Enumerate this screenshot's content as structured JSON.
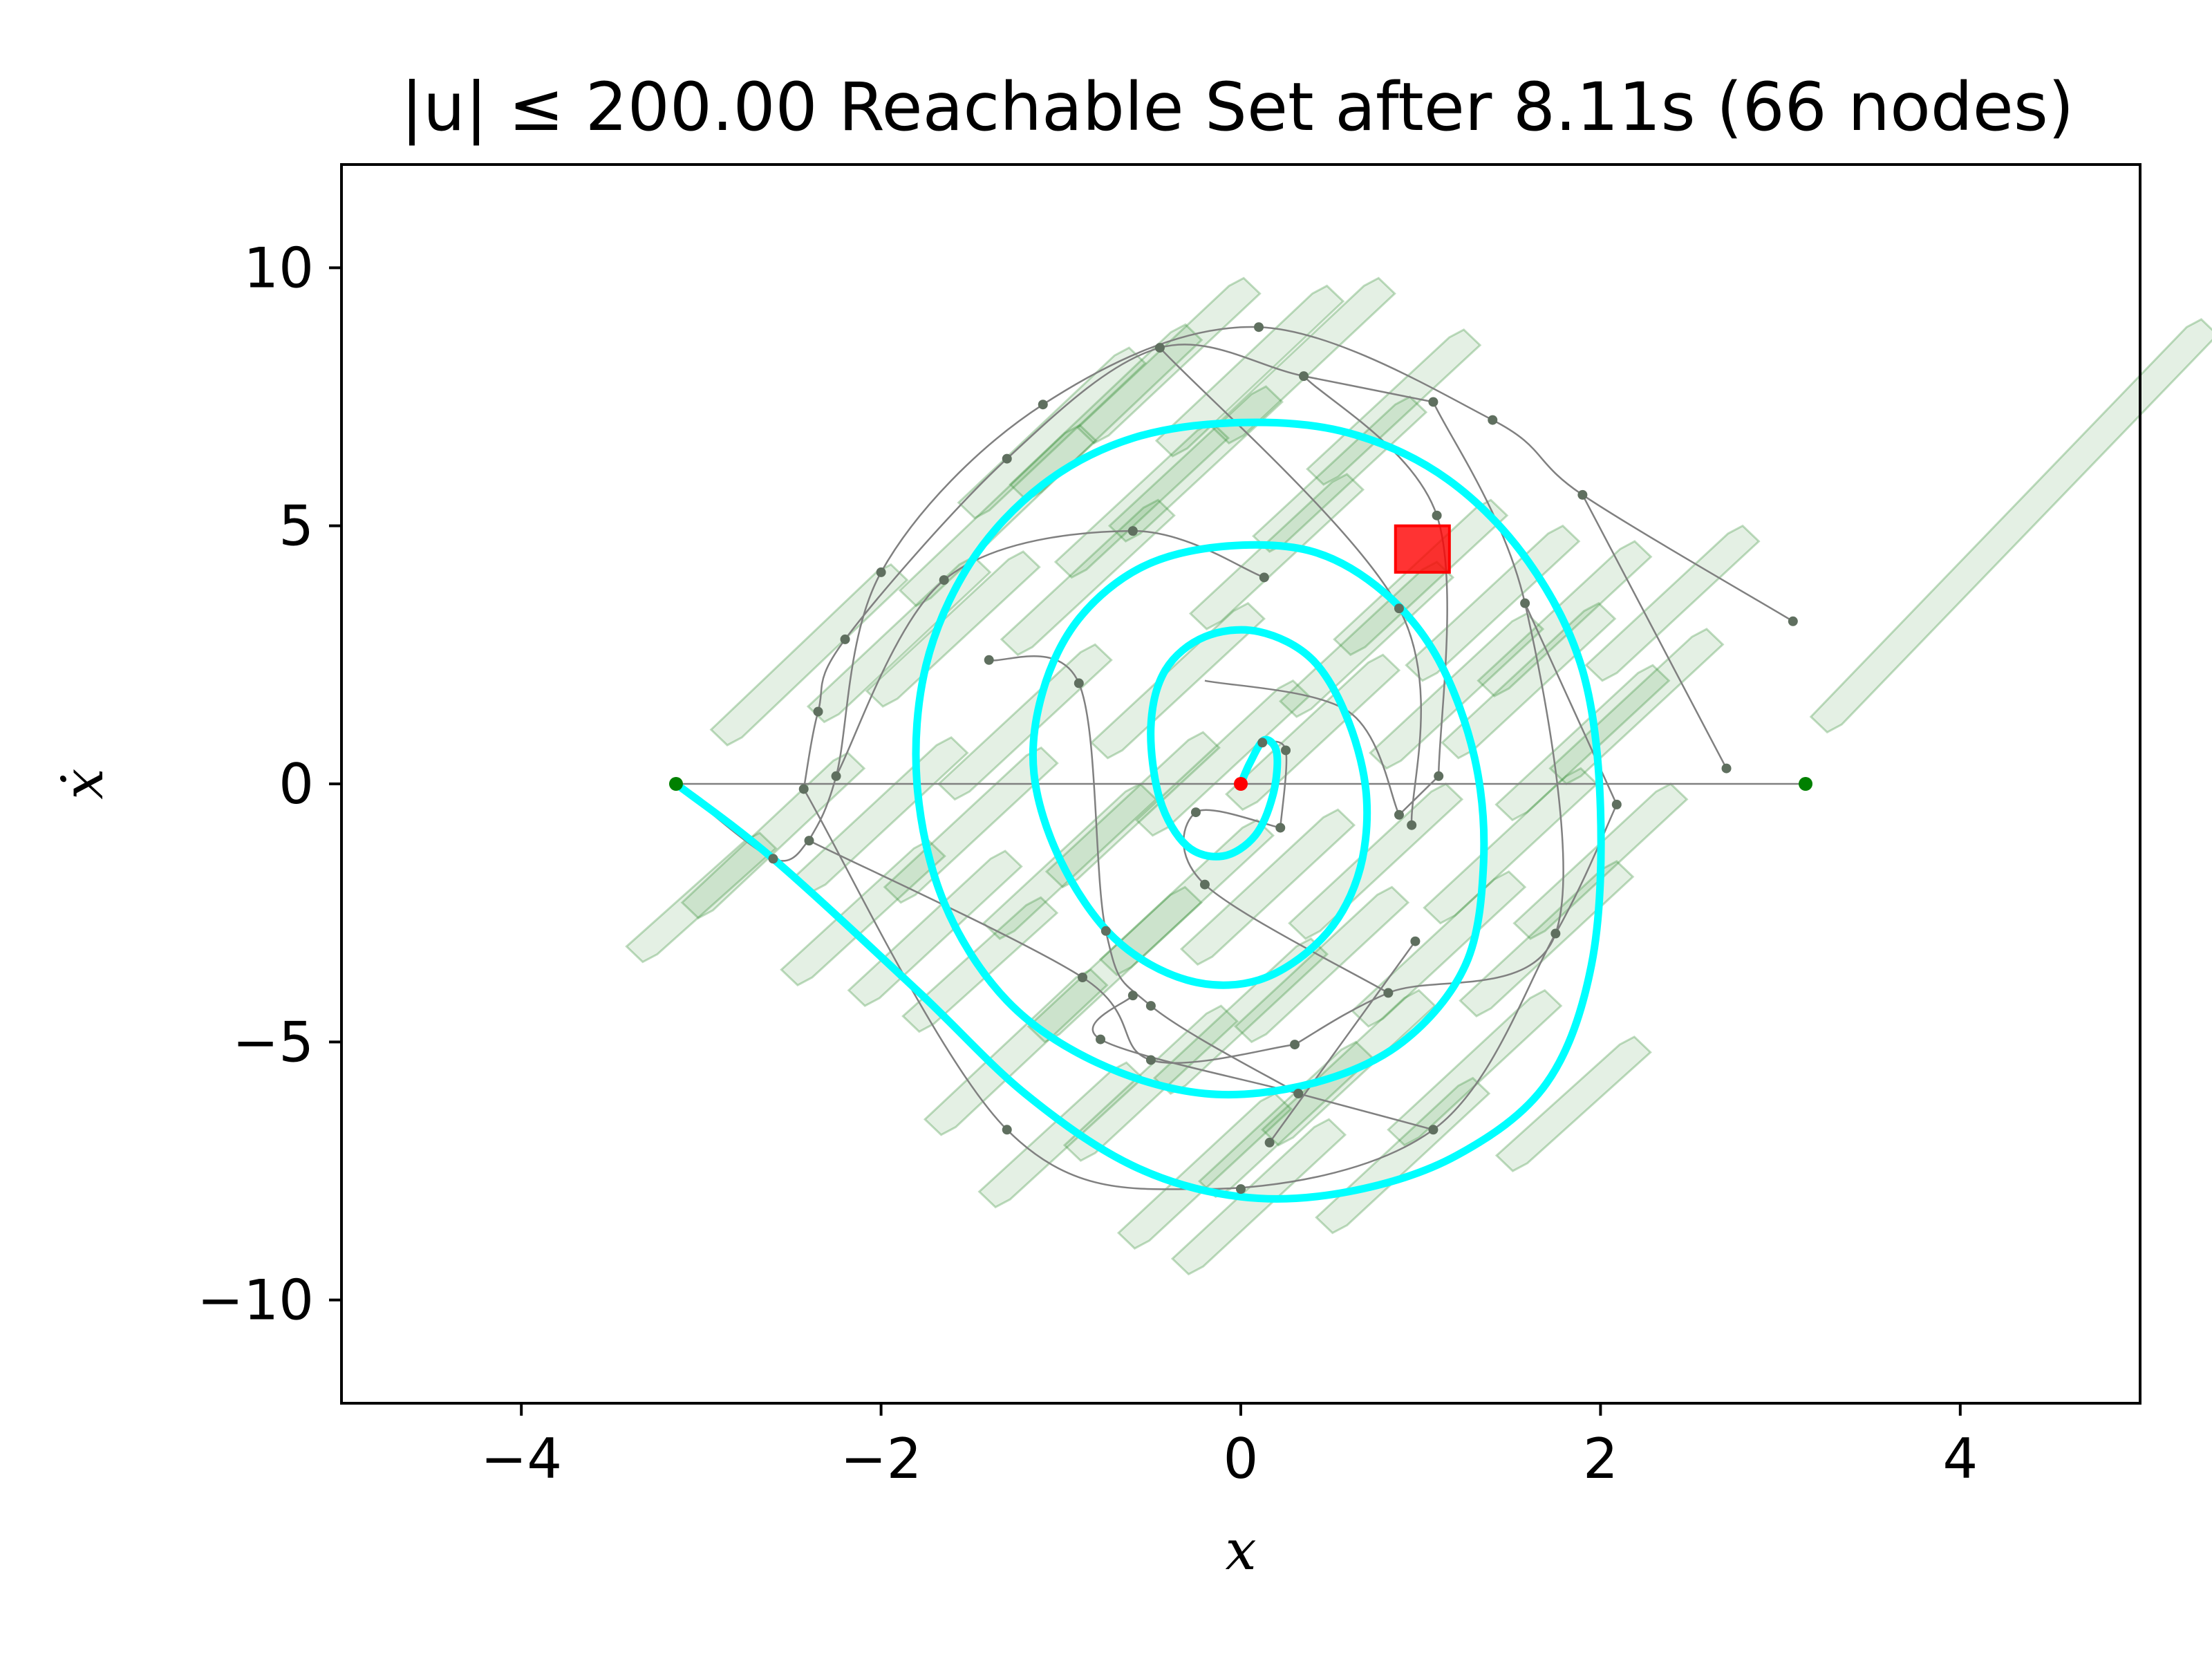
{
  "chart_data": {
    "type": "scatter",
    "title": "|u| ≤ 200.00 Reachable Set after 8.11s (66 nodes)",
    "xlabel": "x",
    "ylabel": "ẋ",
    "xlim": [
      -5,
      5
    ],
    "ylim": [
      -12,
      12
    ],
    "xticks": [
      -4,
      -2,
      0,
      2,
      4
    ],
    "yticks": [
      -10,
      -5,
      0,
      5,
      10
    ],
    "xtick_labels": [
      "−4",
      "−2",
      "0",
      "2",
      "4"
    ],
    "ytick_labels": [
      "−10",
      "−5",
      "0",
      "5",
      "10"
    ],
    "grid": false,
    "colors": {
      "reachable_region": "#2e8b2e",
      "tree_edge": "#808080",
      "tree_node": "#5f6f5f",
      "solution_path": "#00ffff",
      "goal_marker": "#ff0000",
      "start_marker": "#ff0000",
      "boundary_marker": "#008000"
    },
    "start": [
      0,
      0
    ],
    "boundary_points": [
      [
        -3.14,
        0
      ],
      [
        3.14,
        0
      ]
    ],
    "goal_region": {
      "x": [
        0.86,
        1.16
      ],
      "y": [
        4.1,
        5.0
      ]
    },
    "reachable_regions": [
      [
        -3.0,
        -2.2,
        2.5
      ],
      [
        -2.6,
        -1.0,
        3.2
      ],
      [
        -2.4,
        2.5,
        3.5
      ],
      [
        -2.1,
        -2.5,
        2.8
      ],
      [
        -2.0,
        -0.6,
        3.0
      ],
      [
        -1.9,
        2.8,
        3.2
      ],
      [
        -1.7,
        -2.8,
        3.0
      ],
      [
        -1.6,
        3.0,
        3.0
      ],
      [
        -1.5,
        -0.8,
        3.0
      ],
      [
        -1.45,
        -3.5,
        2.6
      ],
      [
        -1.35,
        5.2,
        3.5
      ],
      [
        -1.25,
        -5.2,
        3.2
      ],
      [
        -1.2,
        1.2,
        3.0
      ],
      [
        -1.05,
        6.8,
        3.3
      ],
      [
        -1.0,
        -6.8,
        2.8
      ],
      [
        -0.95,
        -1.5,
        3.0
      ],
      [
        -0.85,
        4.0,
        3.0
      ],
      [
        -0.75,
        7.2,
        3.4
      ],
      [
        -0.7,
        -3.5,
        3.0
      ],
      [
        -0.6,
        -0.5,
        3.0
      ],
      [
        -0.55,
        5.5,
        3.0
      ],
      [
        -0.5,
        -5.8,
        3.0
      ],
      [
        -0.4,
        8.2,
        3.2
      ],
      [
        -0.35,
        2.0,
        3.0
      ],
      [
        -0.3,
        -2.2,
        3.0
      ],
      [
        -0.25,
        6.2,
        3.0
      ],
      [
        -0.2,
        -7.5,
        3.0
      ],
      [
        -0.1,
        0.5,
        3.0
      ],
      [
        0.0,
        -4.5,
        3.0
      ],
      [
        0.05,
        8.0,
        3.3
      ],
      [
        0.1,
        -8.0,
        3.0
      ],
      [
        0.15,
        -2.0,
        3.0
      ],
      [
        0.2,
        4.5,
        3.0
      ],
      [
        0.25,
        -6.5,
        3.0
      ],
      [
        0.35,
        8.2,
        3.2
      ],
      [
        0.4,
        1.0,
        3.0
      ],
      [
        0.45,
        -3.5,
        3.0
      ],
      [
        0.55,
        6.0,
        3.0
      ],
      [
        0.6,
        -5.5,
        3.0
      ],
      [
        0.7,
        2.8,
        3.0
      ],
      [
        0.75,
        -1.5,
        3.0
      ],
      [
        0.85,
        7.3,
        3.0
      ],
      [
        0.9,
        -7.2,
        3.0
      ],
      [
        1.0,
        4.0,
        3.0
      ],
      [
        1.1,
        -3.2,
        3.0
      ],
      [
        1.2,
        1.8,
        3.0
      ],
      [
        1.3,
        -5.5,
        3.0
      ],
      [
        1.4,
        3.5,
        3.0
      ],
      [
        1.5,
        -1.2,
        3.0
      ],
      [
        1.6,
        2.0,
        3.0
      ],
      [
        1.7,
        -3.0,
        3.0
      ],
      [
        1.8,
        3.2,
        3.0
      ],
      [
        1.9,
        0.8,
        3.0
      ],
      [
        2.0,
        -1.5,
        3.0
      ],
      [
        2.2,
        1.5,
        3.0
      ],
      [
        2.4,
        3.5,
        3.0
      ],
      [
        1.85,
        -6.2,
        2.6
      ],
      [
        4.3,
        5.0,
        8.0
      ]
    ],
    "tree_nodes": [
      [
        0.1,
        8.85
      ],
      [
        -0.45,
        8.45
      ],
      [
        0.35,
        7.9
      ],
      [
        1.07,
        7.4
      ],
      [
        1.4,
        7.05
      ],
      [
        -1.1,
        7.35
      ],
      [
        -1.3,
        6.3
      ],
      [
        -0.6,
        4.9
      ],
      [
        0.13,
        4.0
      ],
      [
        1.09,
        5.2
      ],
      [
        1.9,
        5.6
      ],
      [
        -2.0,
        4.1
      ],
      [
        -1.65,
        3.95
      ],
      [
        -2.2,
        2.8
      ],
      [
        -1.4,
        2.4
      ],
      [
        -2.35,
        1.4
      ],
      [
        -0.9,
        1.95
      ],
      [
        -2.25,
        0.15
      ],
      [
        -2.43,
        -0.1
      ],
      [
        -2.4,
        -1.1
      ],
      [
        0.88,
        3.4
      ],
      [
        1.58,
        3.5
      ],
      [
        3.07,
        3.15
      ],
      [
        2.7,
        0.3
      ],
      [
        1.1,
        0.15
      ],
      [
        2.09,
        -0.4
      ],
      [
        0.25,
        0.65
      ],
      [
        0.88,
        -0.6
      ],
      [
        0.95,
        -0.8
      ],
      [
        0.22,
        -0.85
      ],
      [
        -0.25,
        -0.55
      ],
      [
        -0.2,
        -1.95
      ],
      [
        -0.75,
        -2.85
      ],
      [
        -0.88,
        -3.75
      ],
      [
        -0.6,
        -4.1
      ],
      [
        -0.5,
        -4.3
      ],
      [
        -0.78,
        -4.95
      ],
      [
        -0.5,
        -5.35
      ],
      [
        0.3,
        -5.05
      ],
      [
        0.82,
        -4.05
      ],
      [
        0.97,
        -3.05
      ],
      [
        1.75,
        -2.9
      ],
      [
        0.32,
        -6.0
      ],
      [
        0.16,
        -6.95
      ],
      [
        1.07,
        -6.7
      ],
      [
        -1.3,
        -6.7
      ],
      [
        0.0,
        -7.85
      ],
      [
        -2.6,
        -1.45
      ],
      [
        0.12,
        0.8
      ]
    ],
    "tree_curves": [
      [
        [
          -3.14,
          0
        ],
        [
          -2.6,
          -1.45
        ],
        [
          -2.4,
          -1.1
        ]
      ],
      [
        [
          -2.43,
          -0.1
        ],
        [
          -2.35,
          1.4
        ],
        [
          -2.2,
          2.8
        ],
        [
          -1.3,
          6.3
        ],
        [
          -0.45,
          8.45
        ],
        [
          0.35,
          7.9
        ],
        [
          1.07,
          7.4
        ]
      ],
      [
        [
          -2.4,
          -1.1
        ],
        [
          -2.25,
          0.15
        ],
        [
          -2.0,
          4.1
        ],
        [
          -1.1,
          7.35
        ],
        [
          0.1,
          8.85
        ],
        [
          1.4,
          7.05
        ],
        [
          1.9,
          5.6
        ],
        [
          3.07,
          3.15
        ]
      ],
      [
        [
          -2.25,
          0.15
        ],
        [
          -1.65,
          3.95
        ],
        [
          -0.6,
          4.9
        ],
        [
          0.13,
          4.0
        ]
      ],
      [
        [
          1.07,
          7.4
        ],
        [
          1.58,
          3.5
        ],
        [
          1.75,
          -2.9
        ],
        [
          0.82,
          -4.05
        ],
        [
          0.3,
          -5.05
        ]
      ],
      [
        [
          1.9,
          5.6
        ],
        [
          2.7,
          0.3
        ]
      ],
      [
        [
          0.35,
          7.9
        ],
        [
          1.09,
          5.2
        ],
        [
          1.1,
          0.15
        ]
      ],
      [
        [
          -0.45,
          8.45
        ],
        [
          0.88,
          3.4
        ],
        [
          0.95,
          -0.8
        ]
      ],
      [
        [
          -1.4,
          2.4
        ],
        [
          -0.9,
          1.95
        ],
        [
          -0.75,
          -2.85
        ],
        [
          -0.5,
          -4.3
        ],
        [
          0.32,
          -6.0
        ]
      ],
      [
        [
          -2.43,
          -0.1
        ],
        [
          -1.3,
          -6.7
        ],
        [
          -0.2,
          -7.85
        ],
        [
          1.07,
          -6.7
        ],
        [
          1.75,
          -2.9
        ],
        [
          2.09,
          -0.4
        ]
      ],
      [
        [
          -2.4,
          -1.1
        ],
        [
          -0.88,
          -3.75
        ],
        [
          -0.5,
          -5.35
        ],
        [
          0.3,
          -5.05
        ]
      ],
      [
        [
          0.97,
          -3.05
        ],
        [
          0.16,
          -6.95
        ]
      ],
      [
        [
          0.22,
          -0.85
        ],
        [
          -0.25,
          -0.55
        ],
        [
          -0.2,
          -1.95
        ],
        [
          0.82,
          -4.05
        ]
      ],
      [
        [
          0.12,
          0.8
        ],
        [
          0.25,
          0.65
        ],
        [
          0.22,
          -0.85
        ]
      ],
      [
        [
          -0.6,
          -4.1
        ],
        [
          -0.78,
          -4.95
        ],
        [
          0.32,
          -6.0
        ],
        [
          1.07,
          -6.7
        ]
      ],
      [
        [
          1.1,
          0.15
        ],
        [
          0.88,
          -0.6
        ]
      ],
      [
        [
          -0.2,
          2.0
        ],
        [
          0.6,
          1.4
        ],
        [
          0.88,
          -0.6
        ]
      ],
      [
        [
          1.58,
          3.5
        ],
        [
          2.09,
          -0.4
        ]
      ]
    ],
    "solution_path": [
      [
        -3.14,
        0.0
      ],
      [
        -2.6,
        -1.45
      ],
      [
        -1.8,
        -4.0
      ],
      [
        -1.2,
        -6.0
      ],
      [
        -0.6,
        -7.4
      ],
      [
        0.0,
        -8.0
      ],
      [
        0.6,
        -7.9
      ],
      [
        1.2,
        -7.2
      ],
      [
        1.7,
        -5.8
      ],
      [
        1.95,
        -3.5
      ],
      [
        2.0,
        -0.5
      ],
      [
        1.9,
        2.2
      ],
      [
        1.6,
        4.3
      ],
      [
        1.15,
        5.9
      ],
      [
        0.6,
        6.8
      ],
      [
        0.0,
        7.0
      ],
      [
        -0.6,
        6.7
      ],
      [
        -1.1,
        5.8
      ],
      [
        -1.5,
        4.3
      ],
      [
        -1.75,
        2.3
      ],
      [
        -1.8,
        0.0
      ],
      [
        -1.65,
        -2.3
      ],
      [
        -1.3,
        -4.2
      ],
      [
        -0.8,
        -5.4
      ],
      [
        -0.2,
        -6.0
      ],
      [
        0.4,
        -5.8
      ],
      [
        0.9,
        -5.0
      ],
      [
        1.25,
        -3.5
      ],
      [
        1.35,
        -1.5
      ],
      [
        1.3,
        0.5
      ],
      [
        1.1,
        2.4
      ],
      [
        0.8,
        3.7
      ],
      [
        0.4,
        4.5
      ],
      [
        -0.1,
        4.6
      ],
      [
        -0.55,
        4.2
      ],
      [
        -0.9,
        3.2
      ],
      [
        -1.1,
        1.8
      ],
      [
        -1.15,
        0.2
      ],
      [
        -1.0,
        -1.5
      ],
      [
        -0.7,
        -3.0
      ],
      [
        -0.3,
        -3.8
      ],
      [
        0.1,
        -3.8
      ],
      [
        0.45,
        -3.0
      ],
      [
        0.65,
        -1.8
      ],
      [
        0.7,
        -0.3
      ],
      [
        0.6,
        1.2
      ],
      [
        0.4,
        2.4
      ],
      [
        0.1,
        2.95
      ],
      [
        -0.2,
        2.85
      ],
      [
        -0.42,
        2.2
      ],
      [
        -0.5,
        1.1
      ],
      [
        -0.45,
        -0.3
      ],
      [
        -0.3,
        -1.2
      ],
      [
        -0.1,
        -1.4
      ],
      [
        0.08,
        -1.0
      ],
      [
        0.18,
        -0.2
      ],
      [
        0.2,
        0.6
      ],
      [
        0.13,
        0.85
      ],
      [
        0.05,
        0.4
      ],
      [
        0.0,
        0.0
      ]
    ]
  }
}
